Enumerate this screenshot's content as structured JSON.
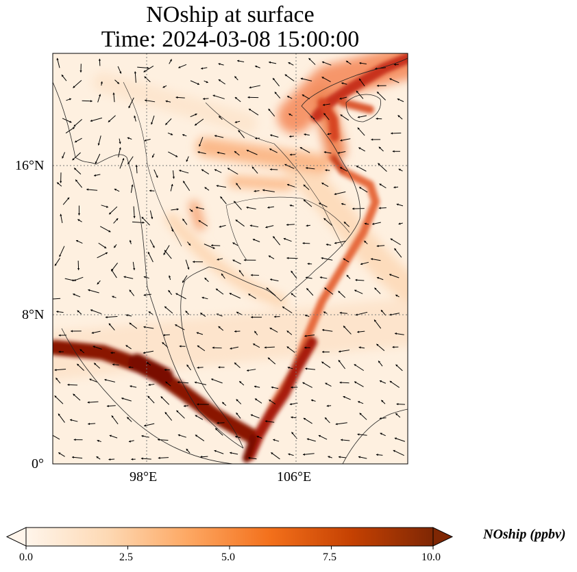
{
  "title": {
    "line1": "NOship at surface",
    "line2": "Time: 2024-03-08 15:00:00"
  },
  "map": {
    "variable": "NOship",
    "level": "surface",
    "lat_ticks": [
      "16°N",
      "8°N",
      "0°"
    ],
    "lon_ticks": [
      "98°E",
      "106°E"
    ],
    "extent": {
      "lon_min": 93,
      "lon_max": 112,
      "lat_min": 0,
      "lat_max": 22
    },
    "gridline_lons": [
      98,
      106
    ],
    "gridline_lats": [
      8,
      16
    ],
    "wind_vectors": "shown"
  },
  "colorbar": {
    "label": "NOship (ppbv)",
    "ticks": [
      "0.0",
      "2.5",
      "5.0",
      "7.5",
      "10.0"
    ],
    "min": 0,
    "max": 10,
    "colormap": [
      "#fff5eb",
      "#fdd9b4",
      "#fda762",
      "#f3701b",
      "#c54102",
      "#7f2704"
    ],
    "extend": "both"
  }
}
